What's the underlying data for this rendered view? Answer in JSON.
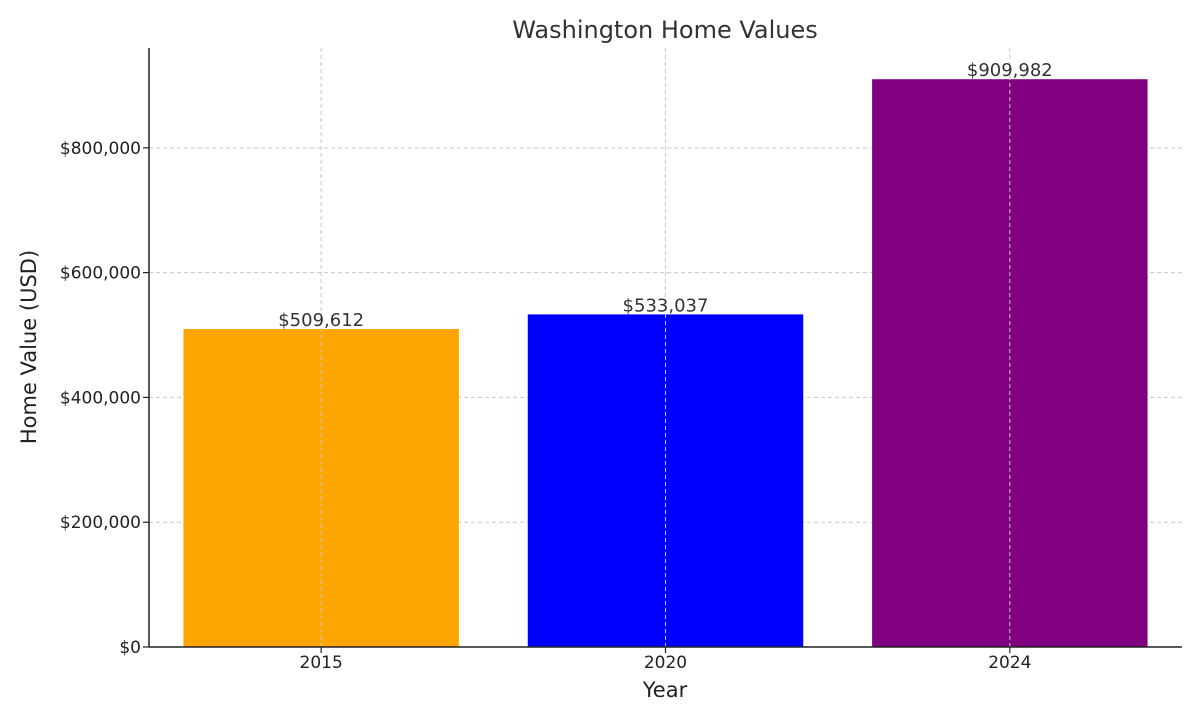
{
  "chart_data": {
    "type": "bar",
    "title": "Washington Home Values",
    "xlabel": "Year",
    "ylabel": "Home Value (USD)",
    "categories": [
      "2015",
      "2020",
      "2024"
    ],
    "values": [
      509612,
      533037,
      909982
    ],
    "value_labels": [
      "$509,612",
      "$533,037",
      "$909,982"
    ],
    "colors": [
      "#FFA500",
      "#0000FF",
      "#800080"
    ],
    "ylim": [
      0,
      960000
    ],
    "yticks": [
      0,
      200000,
      400000,
      600000,
      800000
    ],
    "ytick_labels": [
      "$0",
      "$200,000",
      "$400,000",
      "$600,000",
      "$800,000"
    ],
    "grid": true
  }
}
